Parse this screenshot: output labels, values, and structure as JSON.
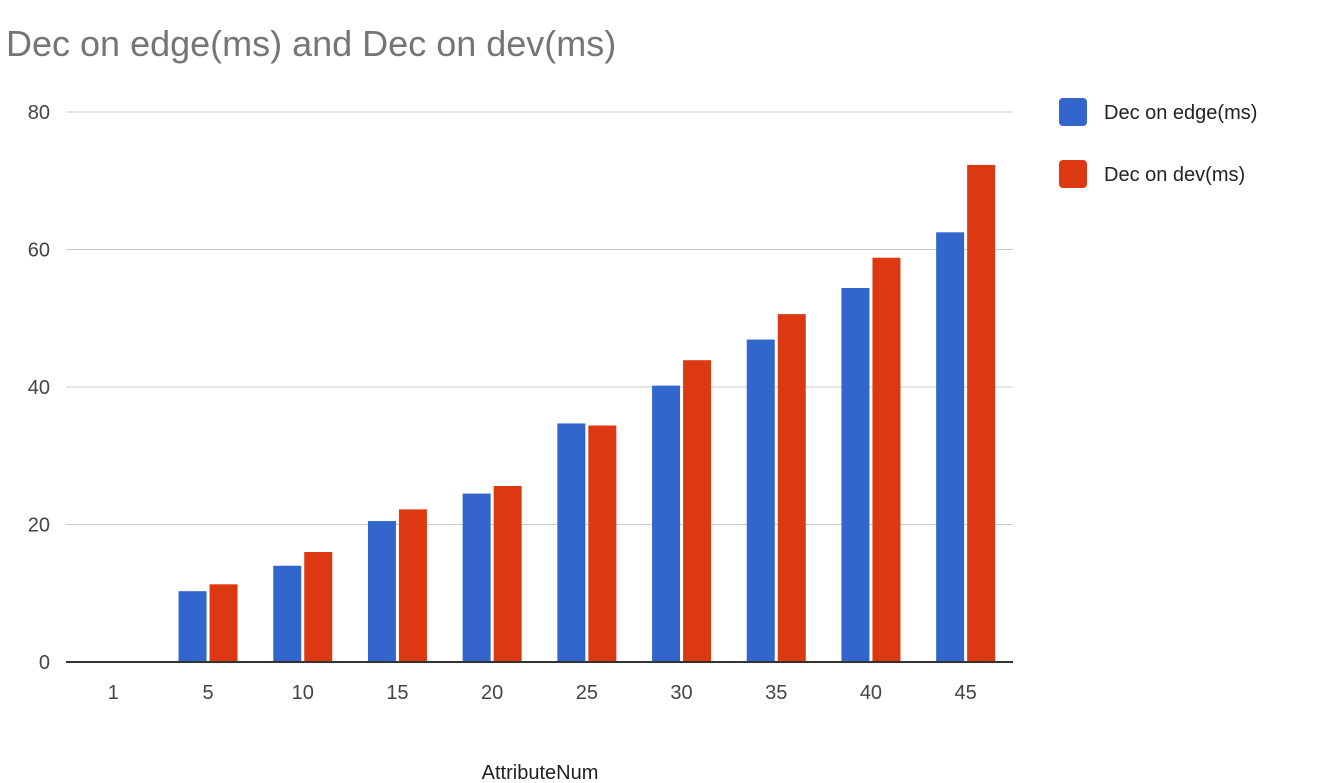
{
  "chart_data": {
    "type": "bar",
    "title": "Dec on edge(ms) and Dec on dev(ms)",
    "xlabel": "AttributeNum",
    "ylabel": "",
    "categories": [
      "1",
      "5",
      "10",
      "15",
      "20",
      "25",
      "30",
      "35",
      "40",
      "45"
    ],
    "series": [
      {
        "name": "Dec on edge(ms)",
        "color": "#3366cc",
        "values": [
          0,
          10.3,
          14.0,
          20.5,
          24.5,
          34.7,
          40.2,
          46.9,
          54.4,
          62.5
        ]
      },
      {
        "name": "Dec on dev(ms)",
        "color": "#dc3912",
        "values": [
          0,
          11.3,
          16.0,
          22.2,
          25.6,
          34.4,
          43.9,
          50.6,
          58.8,
          72.3
        ]
      }
    ],
    "ylim": [
      0,
      80
    ],
    "yticks": [
      "0",
      "20",
      "40",
      "60",
      "80"
    ],
    "grid": true,
    "legend": "right"
  }
}
